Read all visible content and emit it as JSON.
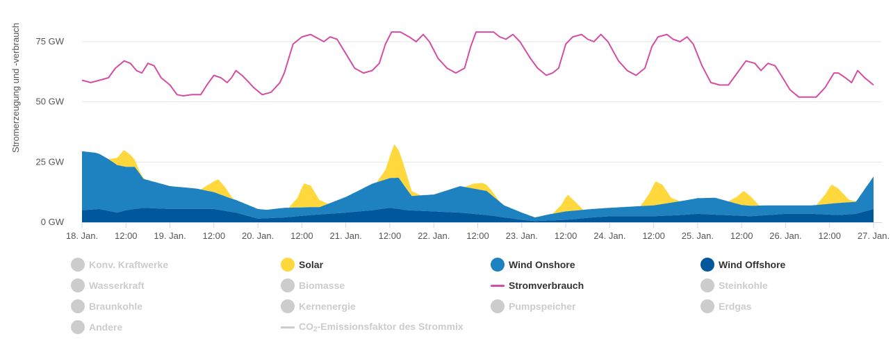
{
  "chart_data": {
    "type": "area",
    "ylabel": "Stromerzeugung und -verbrauch",
    "yticks": [
      {
        "value": 0,
        "label": "0 GW"
      },
      {
        "value": 25,
        "label": "25 GW"
      },
      {
        "value": 50,
        "label": "50 GW"
      },
      {
        "value": 75,
        "label": "75 GW"
      }
    ],
    "ylim": [
      0,
      90
    ],
    "xlim": [
      0,
      9.0
    ],
    "x_unit": "days since 18. Jan. 00:00",
    "xticks": [
      {
        "value": 0,
        "label": "18. Jan."
      },
      {
        "value": 0.5,
        "label": "12:00"
      },
      {
        "value": 1,
        "label": "19. Jan."
      },
      {
        "value": 1.5,
        "label": "12:00"
      },
      {
        "value": 2,
        "label": "20. Jan."
      },
      {
        "value": 2.5,
        "label": "12:00"
      },
      {
        "value": 3,
        "label": "21. Jan."
      },
      {
        "value": 3.5,
        "label": "12:00"
      },
      {
        "value": 4,
        "label": "22. Jan."
      },
      {
        "value": 4.5,
        "label": "12:00"
      },
      {
        "value": 5,
        "label": "23. Jan."
      },
      {
        "value": 5.5,
        "label": "12:00"
      },
      {
        "value": 6,
        "label": "24. Jan."
      },
      {
        "value": 6.5,
        "label": "12:00"
      },
      {
        "value": 7,
        "label": "25. Jan."
      },
      {
        "value": 7.5,
        "label": "12:00"
      },
      {
        "value": 8,
        "label": "26. Jan."
      },
      {
        "value": 8.5,
        "label": "12:00"
      },
      {
        "value": 9,
        "label": "27. Jan."
      }
    ],
    "grid": true,
    "legend_position": "bottom",
    "stacking": "normal",
    "series": [
      {
        "name": "Wind Offshore",
        "type": "area",
        "color": "#00589c",
        "points": [
          [
            0,
            5
          ],
          [
            0.2,
            5.5
          ],
          [
            0.4,
            4
          ],
          [
            0.5,
            5
          ],
          [
            0.7,
            6
          ],
          [
            1.0,
            5.5
          ],
          [
            1.5,
            5.5
          ],
          [
            1.75,
            4
          ],
          [
            2.0,
            1.5
          ],
          [
            2.3,
            2
          ],
          [
            2.6,
            3
          ],
          [
            3.0,
            4
          ],
          [
            3.3,
            5
          ],
          [
            3.5,
            6
          ],
          [
            3.7,
            5
          ],
          [
            4.0,
            4.5
          ],
          [
            4.3,
            4
          ],
          [
            4.6,
            3
          ],
          [
            4.8,
            2
          ],
          [
            5.0,
            1
          ],
          [
            5.15,
            0.5
          ],
          [
            5.5,
            1
          ],
          [
            5.8,
            2
          ],
          [
            6.0,
            2.5
          ],
          [
            6.5,
            2.5
          ],
          [
            6.8,
            3
          ],
          [
            7.0,
            3.5
          ],
          [
            7.3,
            3
          ],
          [
            7.6,
            2.5
          ],
          [
            8.0,
            3.5
          ],
          [
            8.3,
            3.5
          ],
          [
            8.6,
            3
          ],
          [
            8.8,
            3.5
          ],
          [
            9.0,
            5.5
          ]
        ]
      },
      {
        "name": "Wind Onshore",
        "type": "area",
        "color": "#1f82c0",
        "points": [
          [
            0,
            24.5
          ],
          [
            0.15,
            23.5
          ],
          [
            0.3,
            21.5
          ],
          [
            0.5,
            18
          ],
          [
            0.6,
            17.5
          ],
          [
            0.7,
            12
          ],
          [
            1.0,
            9.5
          ],
          [
            1.3,
            8.5
          ],
          [
            1.5,
            7
          ],
          [
            1.7,
            5.5
          ],
          [
            1.9,
            4.5
          ],
          [
            2.1,
            3.5
          ],
          [
            2.3,
            4
          ],
          [
            2.5,
            3.5
          ],
          [
            2.7,
            3
          ],
          [
            3.0,
            6.5
          ],
          [
            3.3,
            11
          ],
          [
            3.6,
            13
          ],
          [
            3.75,
            6
          ],
          [
            4.0,
            7
          ],
          [
            4.3,
            11
          ],
          [
            4.6,
            10
          ],
          [
            4.8,
            5
          ],
          [
            5.0,
            3
          ],
          [
            5.15,
            1.5
          ],
          [
            5.3,
            2.5
          ],
          [
            5.5,
            3.5
          ],
          [
            5.7,
            3.5
          ],
          [
            6.0,
            3.5
          ],
          [
            6.5,
            4.5
          ],
          [
            7.0,
            6.5
          ],
          [
            7.2,
            7
          ],
          [
            7.5,
            4.5
          ],
          [
            7.8,
            4
          ],
          [
            8.0,
            3.5
          ],
          [
            8.3,
            3.5
          ],
          [
            8.6,
            5
          ],
          [
            8.8,
            5
          ],
          [
            9.0,
            13.5
          ]
        ]
      },
      {
        "name": "Solar",
        "type": "area",
        "color": "#ffd83d",
        "points": [
          [
            0,
            0
          ],
          [
            0.3,
            0
          ],
          [
            0.4,
            3
          ],
          [
            0.48,
            7
          ],
          [
            0.55,
            5
          ],
          [
            0.65,
            1
          ],
          [
            0.72,
            0
          ],
          [
            1.35,
            0
          ],
          [
            1.45,
            3
          ],
          [
            1.55,
            6
          ],
          [
            1.62,
            4
          ],
          [
            1.72,
            0
          ],
          [
            2.35,
            0
          ],
          [
            2.45,
            4
          ],
          [
            2.52,
            10
          ],
          [
            2.6,
            9
          ],
          [
            2.7,
            3
          ],
          [
            2.8,
            0
          ],
          [
            3.35,
            0
          ],
          [
            3.45,
            4
          ],
          [
            3.55,
            14
          ],
          [
            3.65,
            9
          ],
          [
            3.75,
            2
          ],
          [
            3.85,
            0
          ],
          [
            4.35,
            0
          ],
          [
            4.45,
            2
          ],
          [
            4.55,
            3
          ],
          [
            4.65,
            2
          ],
          [
            4.75,
            0
          ],
          [
            5.35,
            0
          ],
          [
            5.45,
            3
          ],
          [
            5.52,
            7
          ],
          [
            5.6,
            4
          ],
          [
            5.7,
            0
          ],
          [
            6.35,
            0
          ],
          [
            6.45,
            5
          ],
          [
            6.52,
            10
          ],
          [
            6.6,
            8
          ],
          [
            6.7,
            2
          ],
          [
            6.8,
            0
          ],
          [
            7.35,
            0
          ],
          [
            7.45,
            3
          ],
          [
            7.52,
            6
          ],
          [
            7.6,
            4
          ],
          [
            7.7,
            0
          ],
          [
            8.35,
            0
          ],
          [
            8.45,
            4
          ],
          [
            8.52,
            8
          ],
          [
            8.6,
            6
          ],
          [
            8.72,
            1
          ],
          [
            8.82,
            0
          ],
          [
            9.0,
            0
          ]
        ]
      },
      {
        "name": "Stromverbrauch",
        "type": "line",
        "color": "#d44da2",
        "points": [
          [
            0,
            59
          ],
          [
            0.1,
            58
          ],
          [
            0.2,
            59
          ],
          [
            0.3,
            60
          ],
          [
            0.38,
            64
          ],
          [
            0.48,
            67
          ],
          [
            0.55,
            66
          ],
          [
            0.62,
            63
          ],
          [
            0.68,
            62
          ],
          [
            0.75,
            66
          ],
          [
            0.82,
            65
          ],
          [
            0.9,
            60
          ],
          [
            1.0,
            57
          ],
          [
            1.08,
            53
          ],
          [
            1.15,
            52.5
          ],
          [
            1.25,
            53
          ],
          [
            1.35,
            53
          ],
          [
            1.42,
            57
          ],
          [
            1.5,
            61
          ],
          [
            1.58,
            60
          ],
          [
            1.65,
            58
          ],
          [
            1.7,
            60
          ],
          [
            1.75,
            63
          ],
          [
            1.82,
            61
          ],
          [
            1.9,
            58
          ],
          [
            1.95,
            56
          ],
          [
            2.05,
            53
          ],
          [
            2.15,
            54
          ],
          [
            2.25,
            58
          ],
          [
            2.3,
            62
          ],
          [
            2.4,
            74
          ],
          [
            2.5,
            77
          ],
          [
            2.6,
            78
          ],
          [
            2.7,
            76
          ],
          [
            2.75,
            75
          ],
          [
            2.82,
            77
          ],
          [
            2.9,
            76
          ],
          [
            3.0,
            70
          ],
          [
            3.1,
            64
          ],
          [
            3.2,
            62
          ],
          [
            3.3,
            63
          ],
          [
            3.38,
            66
          ],
          [
            3.45,
            74
          ],
          [
            3.52,
            79
          ],
          [
            3.62,
            79
          ],
          [
            3.72,
            77
          ],
          [
            3.8,
            75
          ],
          [
            3.88,
            78
          ],
          [
            3.95,
            75
          ],
          [
            4.05,
            68
          ],
          [
            4.15,
            64
          ],
          [
            4.25,
            62
          ],
          [
            4.35,
            64
          ],
          [
            4.42,
            73
          ],
          [
            4.48,
            79
          ],
          [
            4.58,
            79
          ],
          [
            4.68,
            79
          ],
          [
            4.75,
            77
          ],
          [
            4.82,
            76
          ],
          [
            4.9,
            78
          ],
          [
            4.98,
            75
          ],
          [
            5.1,
            68
          ],
          [
            5.18,
            64
          ],
          [
            5.28,
            61
          ],
          [
            5.35,
            62
          ],
          [
            5.42,
            64
          ],
          [
            5.5,
            74
          ],
          [
            5.58,
            77
          ],
          [
            5.68,
            78
          ],
          [
            5.75,
            76
          ],
          [
            5.82,
            75
          ],
          [
            5.9,
            78
          ],
          [
            5.98,
            75
          ],
          [
            6.1,
            67
          ],
          [
            6.2,
            63
          ],
          [
            6.3,
            61
          ],
          [
            6.4,
            64
          ],
          [
            6.48,
            73
          ],
          [
            6.55,
            77
          ],
          [
            6.65,
            78
          ],
          [
            6.72,
            76
          ],
          [
            6.8,
            75
          ],
          [
            6.88,
            77
          ],
          [
            6.95,
            74
          ],
          [
            7.05,
            65
          ],
          [
            7.15,
            58
          ],
          [
            7.25,
            57
          ],
          [
            7.35,
            57
          ],
          [
            7.45,
            62
          ],
          [
            7.55,
            67
          ],
          [
            7.65,
            66
          ],
          [
            7.72,
            63
          ],
          [
            7.8,
            66
          ],
          [
            7.88,
            65
          ],
          [
            7.95,
            61
          ],
          [
            8.05,
            55
          ],
          [
            8.15,
            52
          ],
          [
            8.25,
            52
          ],
          [
            8.35,
            52
          ],
          [
            8.45,
            56
          ],
          [
            8.55,
            62
          ],
          [
            8.6,
            62
          ],
          [
            8.68,
            60
          ],
          [
            8.75,
            58
          ],
          [
            8.82,
            63
          ],
          [
            8.9,
            60
          ],
          [
            9.0,
            57
          ]
        ]
      }
    ]
  },
  "legend": {
    "items": [
      {
        "label": "Konv. Kraftwerke",
        "color": "#cccccc",
        "active": false,
        "symbol": "circle"
      },
      {
        "label": "Solar",
        "color": "#ffd83d",
        "active": true,
        "symbol": "circle"
      },
      {
        "label": "Wind Onshore",
        "color": "#1f82c0",
        "active": true,
        "symbol": "circle"
      },
      {
        "label": "Wind Offshore",
        "color": "#00589c",
        "active": true,
        "symbol": "circle"
      },
      {
        "label": "Wasserkraft",
        "color": "#cccccc",
        "active": false,
        "symbol": "circle"
      },
      {
        "label": "Biomasse",
        "color": "#cccccc",
        "active": false,
        "symbol": "circle"
      },
      {
        "label": "Stromverbrauch",
        "color": "#d44da2",
        "active": true,
        "symbol": "line"
      },
      {
        "label": "Steinkohle",
        "color": "#cccccc",
        "active": false,
        "symbol": "circle"
      },
      {
        "label": "Braunkohle",
        "color": "#cccccc",
        "active": false,
        "symbol": "circle"
      },
      {
        "label": "Kernenergie",
        "color": "#cccccc",
        "active": false,
        "symbol": "circle"
      },
      {
        "label": "Pumpspeicher",
        "color": "#cccccc",
        "active": false,
        "symbol": "circle"
      },
      {
        "label": "Erdgas",
        "color": "#cccccc",
        "active": false,
        "symbol": "circle"
      },
      {
        "label": "Andere",
        "color": "#cccccc",
        "active": false,
        "symbol": "circle"
      },
      {
        "label_prefix": "CO",
        "label_sub": "2",
        "label_suffix": "-Emissionsfaktor des Strommix",
        "color": "#cccccc",
        "active": false,
        "symbol": "line"
      }
    ]
  }
}
